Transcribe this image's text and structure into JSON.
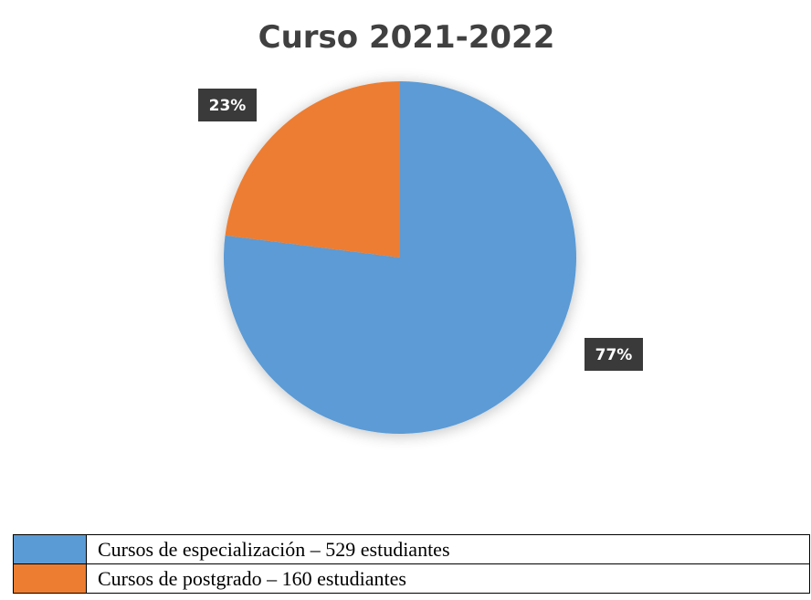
{
  "chart_data": {
    "type": "pie",
    "title": "Curso 2021-2022",
    "categories": [
      "Cursos de especialización – 529 estudiantes",
      "Cursos de postgrado – 160 estudiantes"
    ],
    "values": [
      77,
      23
    ],
    "value_labels": [
      "77%",
      "23%"
    ],
    "colors": [
      "#5b9bd5",
      "#ed7d31"
    ]
  }
}
